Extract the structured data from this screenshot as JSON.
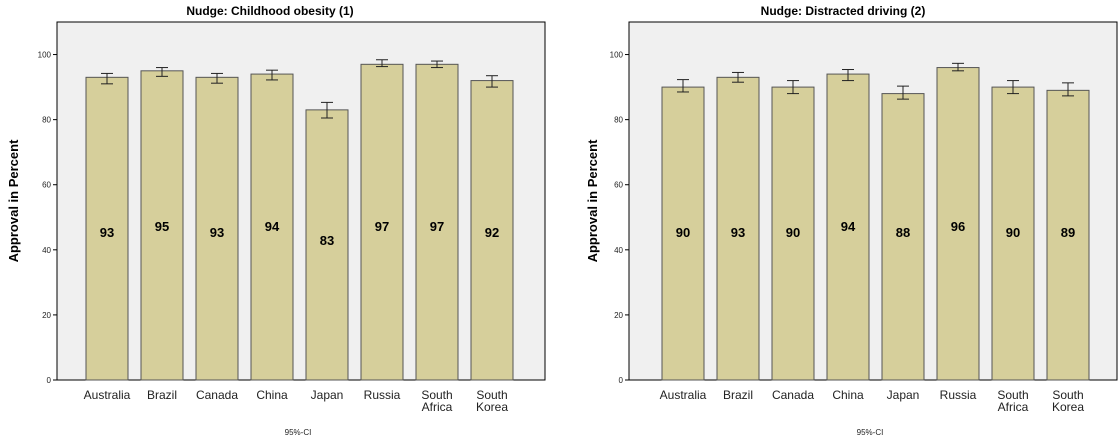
{
  "chart_data": [
    {
      "type": "bar",
      "title": "Nudge: Childhood obesity (1)",
      "ylabel": "Approval in Percent",
      "xlabel": "95%-CI",
      "ylim": [
        0,
        110
      ],
      "yticks": [
        0,
        20,
        40,
        60,
        80,
        100
      ],
      "grid": false,
      "categories": [
        [
          "Australia"
        ],
        [
          "Brazil"
        ],
        [
          "Canada"
        ],
        [
          "China"
        ],
        [
          "Japan"
        ],
        [
          "Russia"
        ],
        [
          "South",
          "Africa"
        ],
        [
          "South",
          "Korea"
        ]
      ],
      "values": [
        93,
        95,
        93,
        94,
        83,
        97,
        97,
        92
      ],
      "ci_low": [
        91.0,
        93.3,
        91.2,
        92.2,
        80.5,
        96.3,
        96.0,
        90.0
      ],
      "ci_high": [
        94.2,
        96.0,
        94.2,
        95.2,
        85.3,
        98.4,
        98.0,
        93.5
      ],
      "bar_color": "#d6cf9b",
      "plot_bg": "#f0f0f0"
    },
    {
      "type": "bar",
      "title": "Nudge: Distracted driving (2)",
      "ylabel": "Approval in Percent",
      "xlabel": "95%-CI",
      "ylim": [
        0,
        110
      ],
      "yticks": [
        0,
        20,
        40,
        60,
        80,
        100
      ],
      "grid": false,
      "categories": [
        [
          "Australia"
        ],
        [
          "Brazil"
        ],
        [
          "Canada"
        ],
        [
          "China"
        ],
        [
          "Japan"
        ],
        [
          "Russia"
        ],
        [
          "South",
          "Africa"
        ],
        [
          "South",
          "Korea"
        ]
      ],
      "values": [
        90,
        93,
        90,
        94,
        88,
        96,
        90,
        89
      ],
      "ci_low": [
        88.5,
        91.5,
        88.0,
        92.0,
        86.3,
        95.0,
        88.0,
        87.3
      ],
      "ci_high": [
        92.3,
        94.5,
        92.0,
        95.4,
        90.3,
        97.3,
        92.0,
        91.3
      ],
      "bar_color": "#d6cf9b",
      "plot_bg": "#f0f0f0"
    }
  ]
}
